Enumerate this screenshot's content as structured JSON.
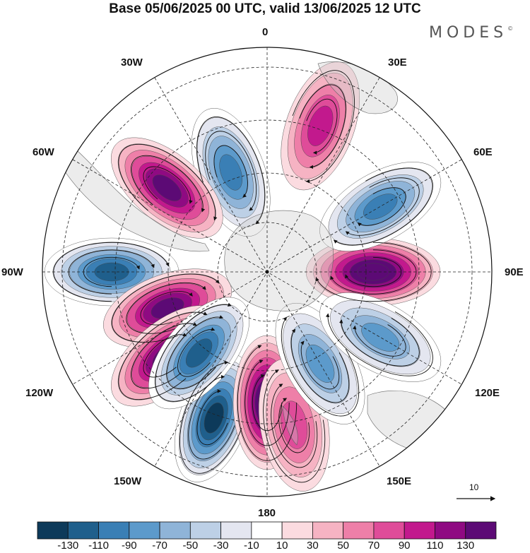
{
  "title": "Base 05/06/2025 00 UTC, valid 13/06/2025 12 UTC",
  "brand": {
    "name": "MODES",
    "mark": "©"
  },
  "map": {
    "projection": "south polar stereographic",
    "longitude_labels": {
      "top": "0",
      "top_right": "30E",
      "right_upper": "60E",
      "right": "90E",
      "right_lower": "120E",
      "bottom_right": "150E",
      "bottom": "180",
      "bottom_left": "150W",
      "left_lower": "120W",
      "left": "90W",
      "left_upper": "60W",
      "top_left": "30W"
    },
    "anomaly_centers": [
      {
        "sign": "positive",
        "value": 130,
        "lon": "90E"
      },
      {
        "sign": "negative",
        "value": -90,
        "lon": "60E"
      },
      {
        "sign": "positive",
        "value": 70,
        "lon": "20E"
      },
      {
        "sign": "negative",
        "value": -90,
        "lon": "20W"
      },
      {
        "sign": "positive",
        "value": 110,
        "lon": "50W"
      },
      {
        "sign": "negative",
        "value": -110,
        "lon": "90W"
      },
      {
        "sign": "positive",
        "value": 110,
        "lon": "110W"
      },
      {
        "sign": "positive",
        "value": 110,
        "lon": "130W"
      },
      {
        "sign": "negative",
        "value": -130,
        "lon": "160W"
      },
      {
        "sign": "negative",
        "value": -110,
        "lon": "140W"
      },
      {
        "sign": "positive",
        "value": 130,
        "lon": "180"
      },
      {
        "sign": "positive",
        "value": 50,
        "lon": "170E"
      },
      {
        "sign": "negative",
        "value": -70,
        "lon": "150E"
      },
      {
        "sign": "negative",
        "value": -70,
        "lon": "120E"
      }
    ]
  },
  "vector_reference": {
    "value": "10"
  },
  "colorbar": {
    "colors": [
      "#0d3a5a",
      "#1f5f8c",
      "#3a7fb5",
      "#5c9acb",
      "#8fb4d8",
      "#bdd0e6",
      "#e4e6f0",
      "#ffffff",
      "#fbdbe0",
      "#f6b3c3",
      "#ee7fa8",
      "#df4c99",
      "#c2198d",
      "#8f0a82",
      "#5c0a75"
    ],
    "tick_labels": [
      "-130",
      "-110",
      "-90",
      "-70",
      "-50",
      "-30",
      "-10",
      "10",
      "30",
      "50",
      "70",
      "90",
      "110",
      "130"
    ]
  }
}
